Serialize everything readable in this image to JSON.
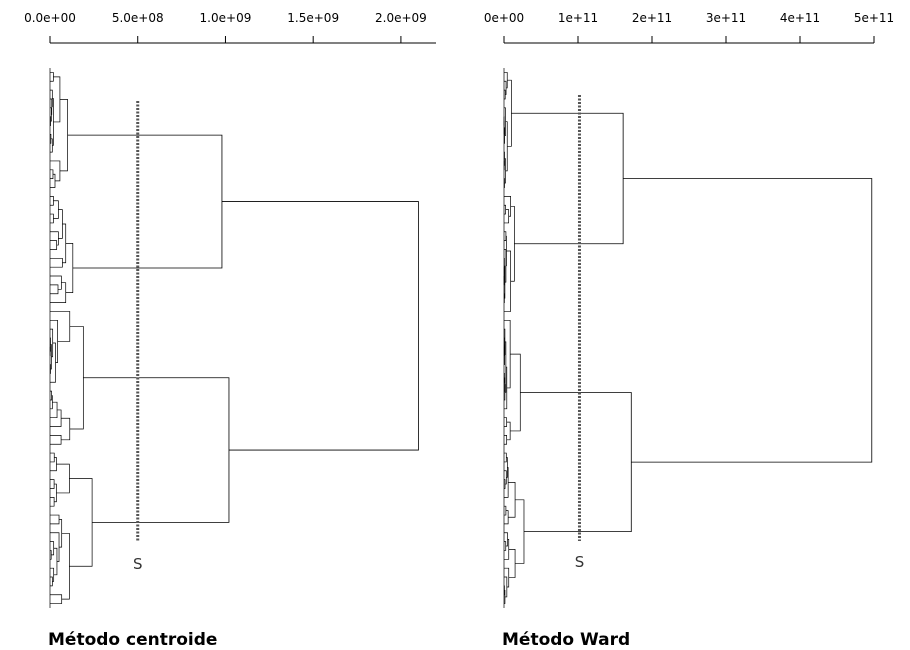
{
  "chart_data": [
    {
      "type": "dendrogram",
      "orientation": "horizontal",
      "title": "Método centroide",
      "xlim": [
        0,
        2200000000
      ],
      "ticks": [
        {
          "value": 0,
          "label": "0.0e+00"
        },
        {
          "value": 500000000,
          "label": "5.0e+08"
        },
        {
          "value": 1000000000,
          "label": "1.0e+09"
        },
        {
          "value": 1500000000,
          "label": "1.5e+09"
        },
        {
          "value": 2000000000,
          "label": "2.0e+09"
        }
      ],
      "cut": {
        "value": 500000000,
        "label": "S"
      },
      "root_height": 2100000000,
      "clusters": [
        {
          "height": 980000000,
          "children": [
            {
              "height": 100000000,
              "leaves": 14
            },
            {
              "height": 130000000,
              "leaves": 13
            }
          ]
        },
        {
          "height": 1020000000,
          "children": [
            {
              "height": 190000000,
              "leaves": 16
            },
            {
              "height": 240000000,
              "leaves": 18
            }
          ]
        }
      ]
    },
    {
      "type": "dendrogram",
      "orientation": "horizontal",
      "title": "Método Ward",
      "xlim": [
        0,
        500000000000
      ],
      "ticks": [
        {
          "value": 0,
          "label": "0e+00"
        },
        {
          "value": 100000000000,
          "label": "1e+11"
        },
        {
          "value": 200000000000,
          "label": "2e+11"
        },
        {
          "value": 300000000000,
          "label": "3e+11"
        },
        {
          "value": 400000000000,
          "label": "4e+11"
        },
        {
          "value": 500000000000,
          "label": "5e+11"
        }
      ],
      "cut": {
        "value": 102000000000,
        "label": "S"
      },
      "root_height": 497000000000,
      "clusters": [
        {
          "height": 161000000000,
          "children": [
            {
              "height": 10000000000,
              "leaves": 14
            },
            {
              "height": 14000000000,
              "leaves": 14
            }
          ]
        },
        {
          "height": 172000000000,
          "children": [
            {
              "height": 22000000000,
              "leaves": 15
            },
            {
              "height": 27000000000,
              "leaves": 18
            }
          ]
        }
      ]
    }
  ]
}
